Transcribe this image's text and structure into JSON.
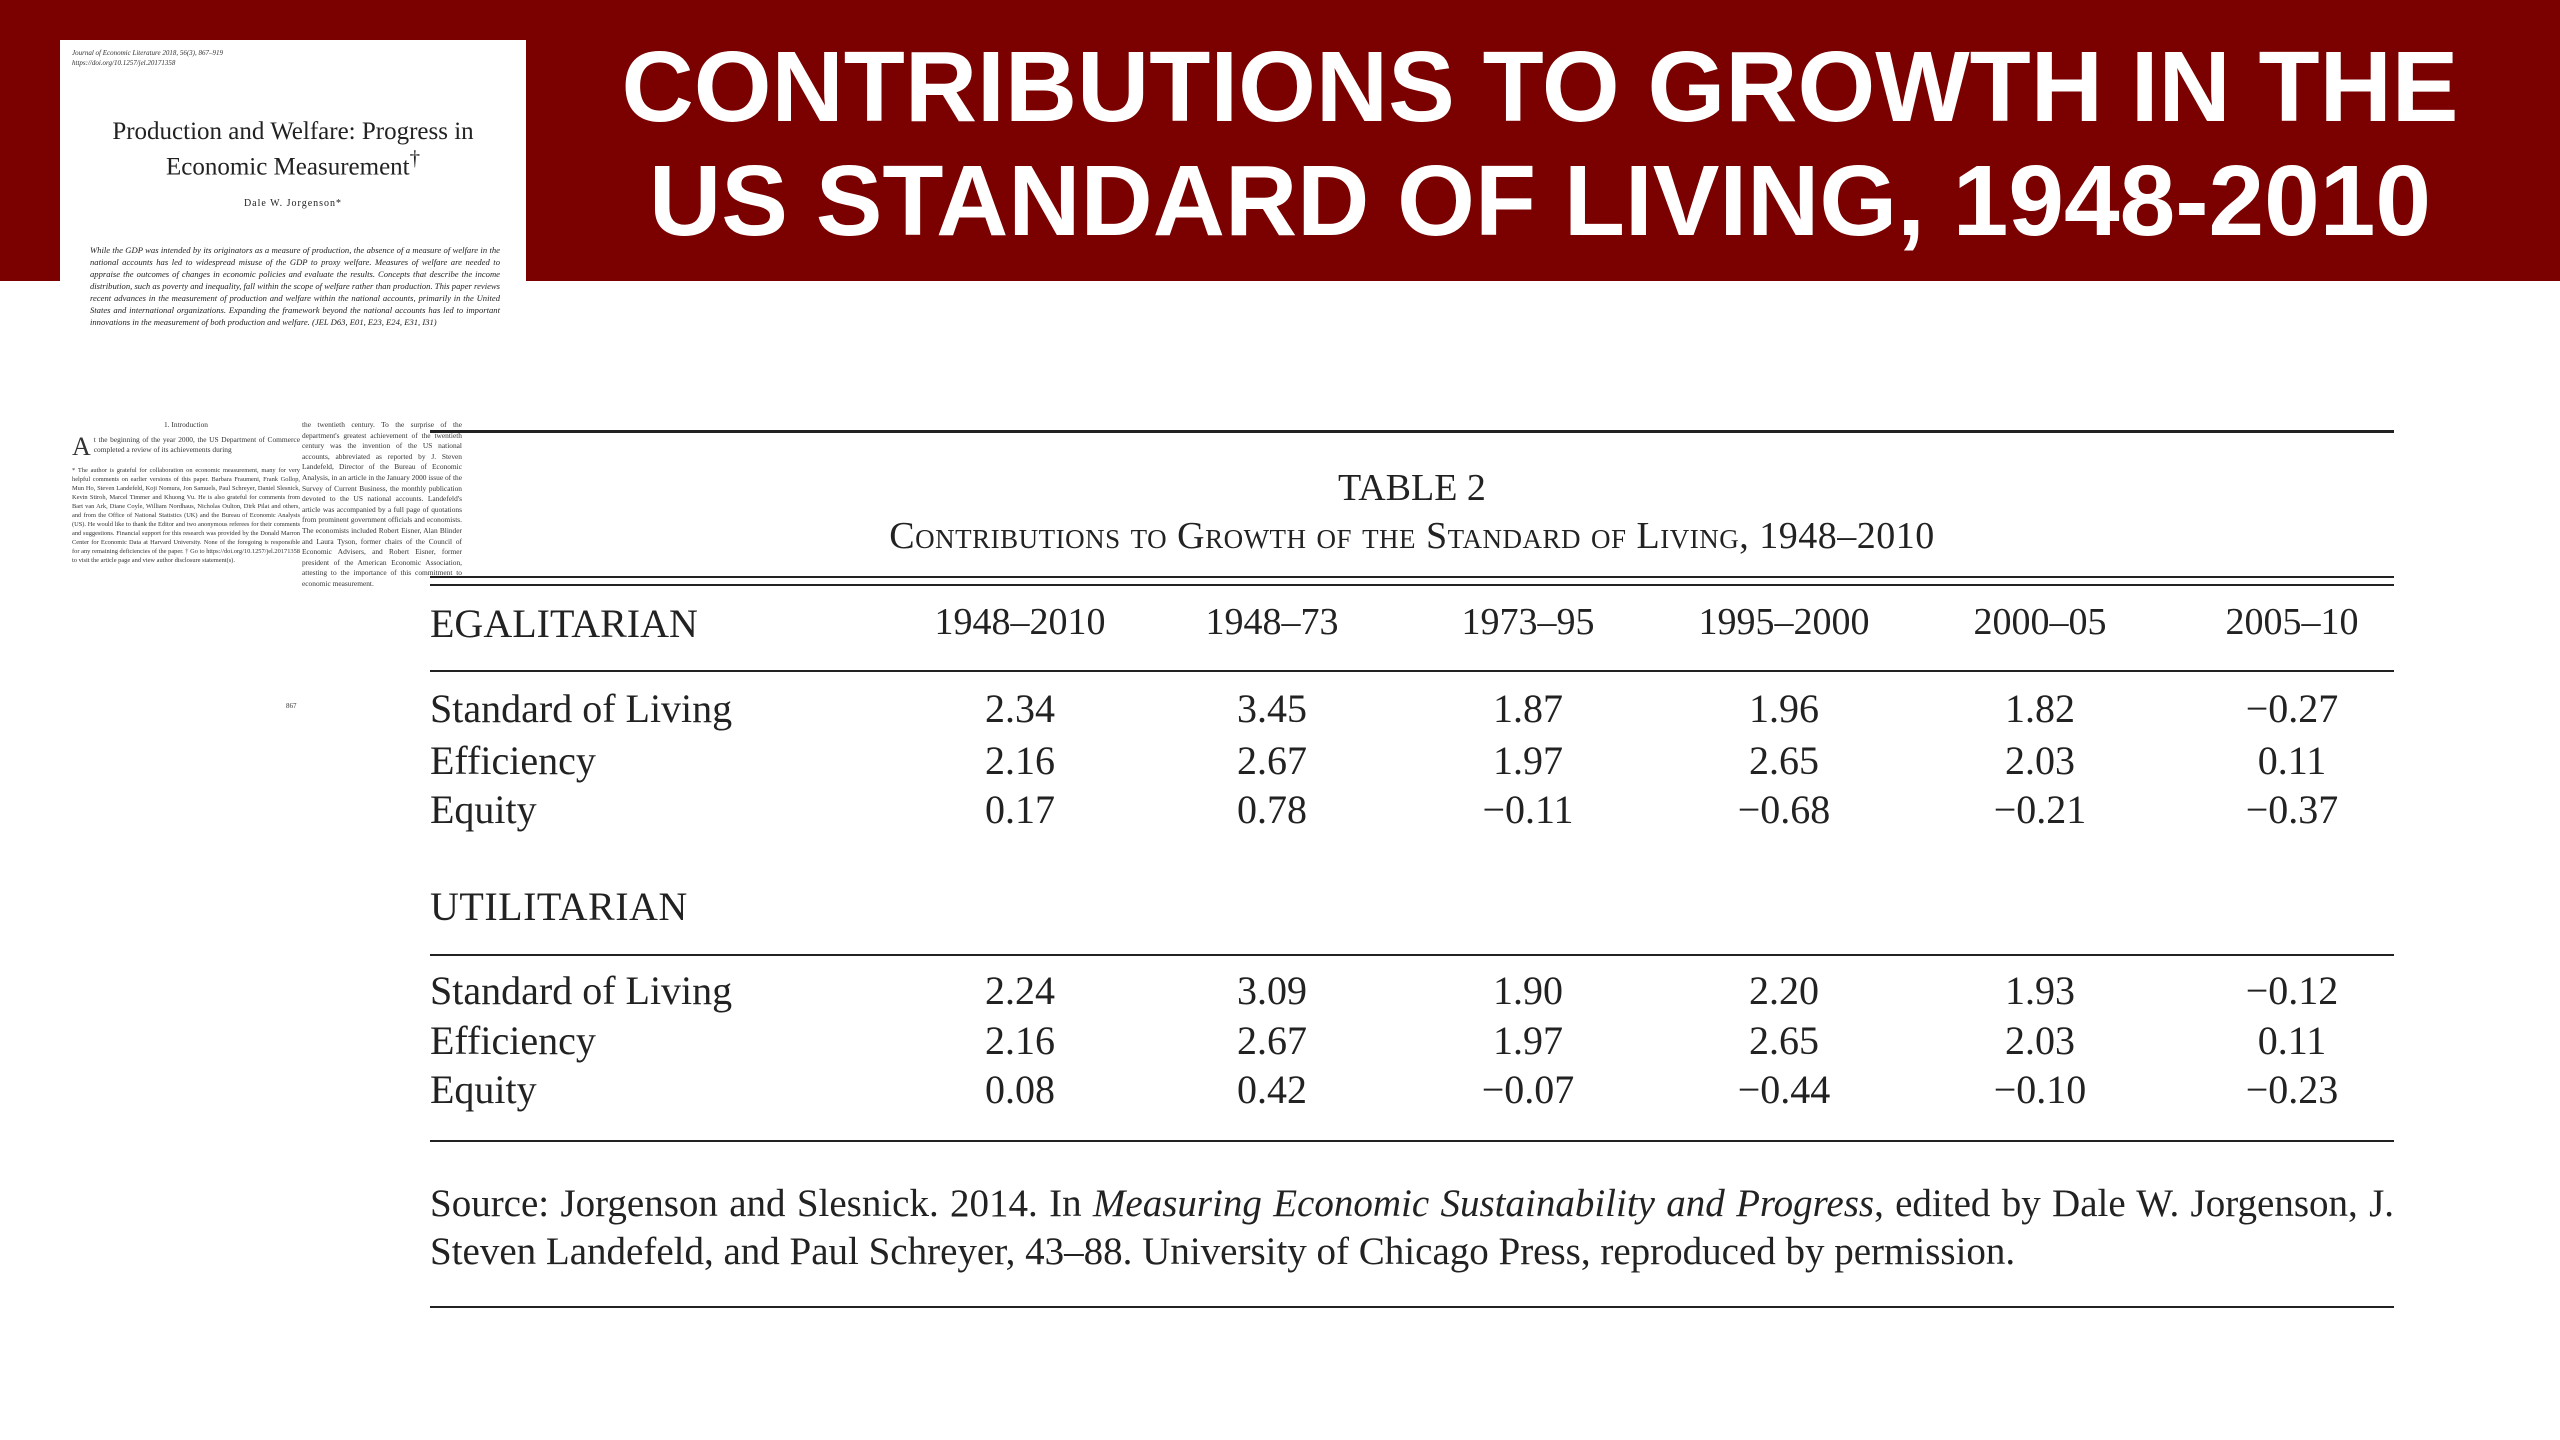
{
  "slide_title": {
    "line1": "CONTRIBUTIONS TO GROWTH IN THE",
    "line2": "US STANDARD OF LIVING, 1948-2010"
  },
  "paper": {
    "journal_line": "Journal of Economic Literature 2018, 56(3), 867–919 https://doi.org/10.1257/jel.20171358",
    "title": "Production and Welfare: Progress in Economic Measurement",
    "title_mark": "†",
    "author": "Dale W. Jorgenson*",
    "abstract": "While the GDP was intended by its originators as a measure of production, the absence of a measure of welfare in the national accounts has led to widespread misuse of the GDP to proxy welfare. Measures of welfare are needed to appraise the outcomes of changes in economic policies and evaluate the results. Concepts that describe the income distribution, such as poverty and inequality, fall within the scope of welfare rather than production. This paper reviews recent advances in the measurement of production and welfare within the national accounts, primarily in the United States and international organizations. Expanding the framework beyond the national accounts has led to important innovations in the measurement of both production and welfare. (JEL D63, E01, E23, E24, E31, I31)",
    "section": "1. Introduction",
    "drop_cap": "A",
    "left_text": "t the beginning of the year 2000, the US Department of Commerce completed a review of its achievements during",
    "left_footnote": "* The author is grateful for collaboration on economic measurement, many for very helpful comments on earlier versions of this paper. Barbara Fraumeni, Frank Gollop, Mun Ho, Steven Landefeld, Koji Nomura, Jon Samuels, Paul Schreyer, Daniel Slesnick, Kevin Stiroh, Marcel Timmer and Khuong Vu. He is also grateful for comments from Bart van Ark, Diane Coyle, William Nordhaus, Nicholas Oulton, Dirk Pilat and others, and from the Office of National Statistics (UK) and the Bureau of Economic Analysis (US). He would like to thank the Editor and two anonymous referees for their comments and suggestions. Financial support for this research was provided by the Donald Marron Center for Economic Data at Harvard University. None of the foregoing is responsible for any remaining deficiencies of the paper. † Go to https://doi.org/10.1257/jel.20171358 to visit the article page and view author disclosure statement(s).",
    "right_text": "the twentieth century. To the surprise of the department's greatest achievement of the twentieth century was the invention of the US national accounts, abbreviated as reported by J. Steven Landefeld, Director of the Bureau of Economic Analysis, in an article in the January 2000 issue of the Survey of Current Business, the monthly publication devoted to the US national accounts. Landefeld's article was accompanied by a full page of quotations from prominent government officials and economists. The economists included Robert Eisner, Alan Blinder and Laura Tyson, former chairs of the Council of Economic Advisers, and Robert Eisner, former president of the American Economic Association, attesting to the importance of this commitment to economic measurement.",
    "page_number": "867"
  },
  "table": {
    "label": "TABLE 2",
    "caption": "Contributions to Growth of the Standard of Living, 1948–2010",
    "columns": [
      "1948–2010",
      "1948–73",
      "1973–95",
      "1995–2000",
      "2000–05",
      "2005–10"
    ],
    "groups": [
      {
        "name": "EGALITARIAN",
        "rows": [
          {
            "label": "Standard of Living",
            "values": [
              "2.34",
              "3.45",
              "1.87",
              "1.96",
              "1.82",
              "−0.27"
            ]
          },
          {
            "label": "Efficiency",
            "values": [
              "2.16",
              "2.67",
              "1.97",
              "2.65",
              "2.03",
              "0.11"
            ]
          },
          {
            "label": "Equity",
            "values": [
              "0.17",
              "0.78",
              "−0.11",
              "−0.68",
              "−0.21",
              "−0.37"
            ]
          }
        ]
      },
      {
        "name": "UTILITARIAN",
        "rows": [
          {
            "label": "Standard of Living",
            "values": [
              "2.24",
              "3.09",
              "1.90",
              "2.20",
              "1.93",
              "−0.12"
            ]
          },
          {
            "label": "Efficiency",
            "values": [
              "2.16",
              "2.67",
              "1.97",
              "2.65",
              "2.03",
              "0.11"
            ]
          },
          {
            "label": "Equity",
            "values": [
              "0.08",
              "0.42",
              "−0.07",
              "−0.44",
              "−0.10",
              "−0.23"
            ]
          }
        ]
      }
    ],
    "source": {
      "prefix": "Source: Jorgenson and Slesnick. 2014. In ",
      "book": "Measuring Economic Sustainability and Progress",
      "suffix": ", edited by Dale W. Jorgenson, J. Steven Landefeld, and Paul Schreyer, 43–88. University of Chicago Press, reproduced by permission."
    }
  },
  "colors": {
    "banner": "#7b0000",
    "title_text": "#ffffff",
    "body_text": "#222222"
  }
}
